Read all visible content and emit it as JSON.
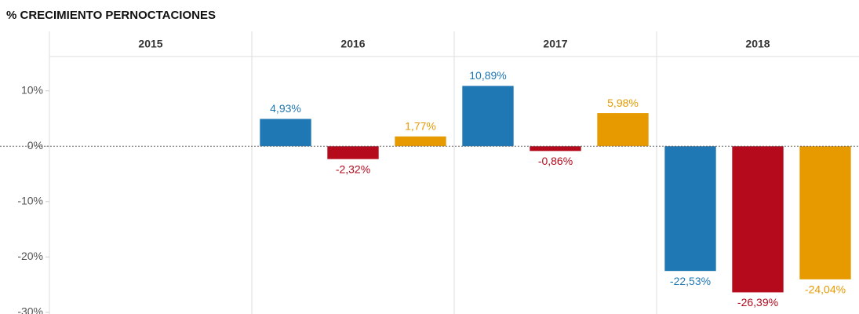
{
  "chart_data": {
    "type": "bar",
    "title": "% CRECIMIENTO PERNOCTACIONES",
    "categories": [
      "2015",
      "2016",
      "2017",
      "2018"
    ],
    "series": [
      {
        "color": "#1f77b4",
        "values": [
          null,
          4.93,
          10.89,
          -22.53
        ],
        "value_labels": [
          null,
          "4,93%",
          "10,89%",
          "-22,53%"
        ]
      },
      {
        "color": "#b5091c",
        "values": [
          null,
          -2.32,
          -0.86,
          -26.39
        ],
        "value_labels": [
          null,
          "-2,32%",
          "-0,86%",
          "-26,39%"
        ]
      },
      {
        "color": "#e69a00",
        "values": [
          null,
          1.77,
          5.98,
          -24.04
        ],
        "value_labels": [
          null,
          "1,77%",
          "5,98%",
          "-24,04%"
        ]
      }
    ],
    "ylim": [
      -30.3,
      16.2
    ],
    "yticks": [
      {
        "value": -30,
        "label": "-30%"
      },
      {
        "value": -20,
        "label": "-20%"
      },
      {
        "value": -10,
        "label": "-10%"
      },
      {
        "value": 0,
        "label": "0%"
      },
      {
        "value": 10,
        "label": "10%"
      }
    ]
  }
}
